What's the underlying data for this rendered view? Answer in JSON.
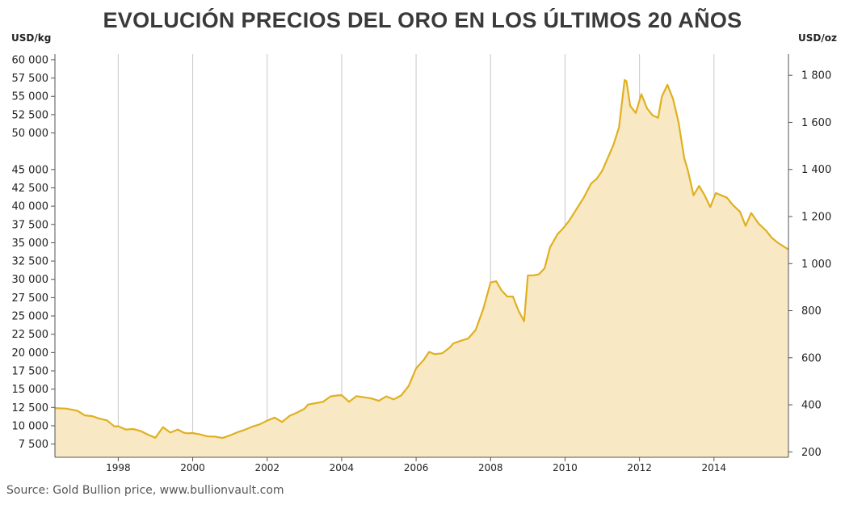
{
  "chart_data": {
    "type": "area",
    "title": "EVOLUCIÓN PRECIOS DEL ORO EN LOS ÚLTIMOS 20 AÑOS",
    "y_left_unit": "USD/kg",
    "y_right_unit": "USD/oz",
    "source": "Source: Gold Bullion price,  www.bullionvault.com",
    "x_ticks": [
      1998,
      2000,
      2002,
      2004,
      2006,
      2008,
      2010,
      2012,
      2014
    ],
    "xlim": [
      1996.3,
      2016.0
    ],
    "y_left_ticks": [
      {
        "value": 7500,
        "label": "7 500"
      },
      {
        "value": 10000,
        "label": "10 000"
      },
      {
        "value": 12500,
        "label": "12 500"
      },
      {
        "value": 15000,
        "label": "15 000"
      },
      {
        "value": 17500,
        "label": "17 500"
      },
      {
        "value": 20000,
        "label": "20 000"
      },
      {
        "value": 22500,
        "label": "22 500"
      },
      {
        "value": 25000,
        "label": "25 000"
      },
      {
        "value": 27500,
        "label": "27 500"
      },
      {
        "value": 30000,
        "label": "30 000"
      },
      {
        "value": 32500,
        "label": "32 500"
      },
      {
        "value": 35000,
        "label": "35 000"
      },
      {
        "value": 37500,
        "label": "37 500"
      },
      {
        "value": 40000,
        "label": "40 000"
      },
      {
        "value": 42500,
        "label": "42 500"
      },
      {
        "value": 45000,
        "label": "45 000"
      },
      {
        "value": 50000,
        "label": "50 000"
      },
      {
        "value": 52500,
        "label": "52 500"
      },
      {
        "value": 55000,
        "label": "55 000"
      },
      {
        "value": 57500,
        "label": "57 500"
      },
      {
        "value": 60000,
        "label": "60 000"
      }
    ],
    "y_right_ticks": [
      {
        "value": 200,
        "label": "200"
      },
      {
        "value": 400,
        "label": "400"
      },
      {
        "value": 600,
        "label": "600"
      },
      {
        "value": 800,
        "label": "800"
      },
      {
        "value": 1000,
        "label": "1 000"
      },
      {
        "value": 1200,
        "label": "1 200"
      },
      {
        "value": 1400,
        "label": "1 400"
      },
      {
        "value": 1600,
        "label": "1 600"
      },
      {
        "value": 1800,
        "label": "1 800"
      }
    ],
    "ylim_right": [
      177,
      1890
    ],
    "grid": "vertical at x ticks",
    "colors": {
      "line": "#e0b020",
      "fill": "#f8e8c4",
      "grid": "#c8c8c8"
    },
    "series": [
      {
        "x": [
          1996.3,
          1996.6,
          1996.9,
          1997.1,
          1997.3,
          1997.5,
          1997.7,
          1997.9,
          1998.0,
          1998.2,
          1998.4,
          1998.6,
          1998.8,
          1999.0,
          1999.2,
          1999.4,
          1999.6,
          1999.75,
          1999.85,
          2000.0,
          2000.2,
          2000.4,
          2000.6,
          2000.8,
          2001.0,
          2001.2,
          2001.4,
          2001.6,
          2001.8,
          2002.0,
          2002.2,
          2002.4,
          2002.6,
          2002.8,
          2003.0,
          2003.1,
          2003.3,
          2003.5,
          2003.7,
          2003.9,
          2004.0,
          2004.2,
          2004.4,
          2004.6,
          2004.8,
          2005.0,
          2005.2,
          2005.4,
          2005.6,
          2005.8,
          2006.0,
          2006.2,
          2006.35,
          2006.5,
          2006.7,
          2006.9,
          2007.0,
          2007.2,
          2007.4,
          2007.6,
          2007.8,
          2008.0,
          2008.15,
          2008.3,
          2008.45,
          2008.6,
          2008.75,
          2008.9,
          2009.0,
          2009.15,
          2009.3,
          2009.45,
          2009.6,
          2009.8,
          2009.95,
          2010.1,
          2010.3,
          2010.5,
          2010.7,
          2010.85,
          2011.0,
          2011.15,
          2011.3,
          2011.45,
          2011.6,
          2011.65,
          2011.75,
          2011.9,
          2012.05,
          2012.2,
          2012.35,
          2012.5,
          2012.6,
          2012.75,
          2012.9,
          2013.05,
          2013.2,
          2013.3,
          2013.45,
          2013.6,
          2013.75,
          2013.9,
          2014.05,
          2014.2,
          2014.35,
          2014.5,
          2014.7,
          2014.85,
          2015.0,
          2015.2,
          2015.4,
          2015.55,
          2015.7,
          2015.85,
          2016.0
        ],
        "y": [
          386,
          384,
          375,
          355,
          352,
          341,
          334,
          308,
          309,
          295,
          297,
          289,
          273,
          260,
          305,
          282,
          295,
          282,
          279,
          280,
          274,
          266,
          265,
          259,
          270,
          283,
          294,
          307,
          317,
          333,
          346,
          327,
          353,
          367,
          383,
          401,
          407,
          413,
          436,
          440,
          441,
          413,
          437,
          432,
          427,
          417,
          436,
          423,
          440,
          480,
          555,
          590,
          625,
          615,
          619,
          643,
          661,
          672,
          682,
          718,
          806,
          920,
          925,
          885,
          860,
          860,
          800,
          755,
          950,
          950,
          955,
          980,
          1070,
          1125,
          1150,
          1180,
          1230,
          1280,
          1340,
          1360,
          1395,
          1450,
          1505,
          1580,
          1780,
          1775,
          1670,
          1640,
          1720,
          1660,
          1630,
          1620,
          1710,
          1760,
          1700,
          1600,
          1450,
          1395,
          1290,
          1330,
          1290,
          1240,
          1300,
          1290,
          1280,
          1250,
          1220,
          1160,
          1215,
          1170,
          1140,
          1110,
          1090,
          1075,
          1060
        ]
      }
    ]
  }
}
